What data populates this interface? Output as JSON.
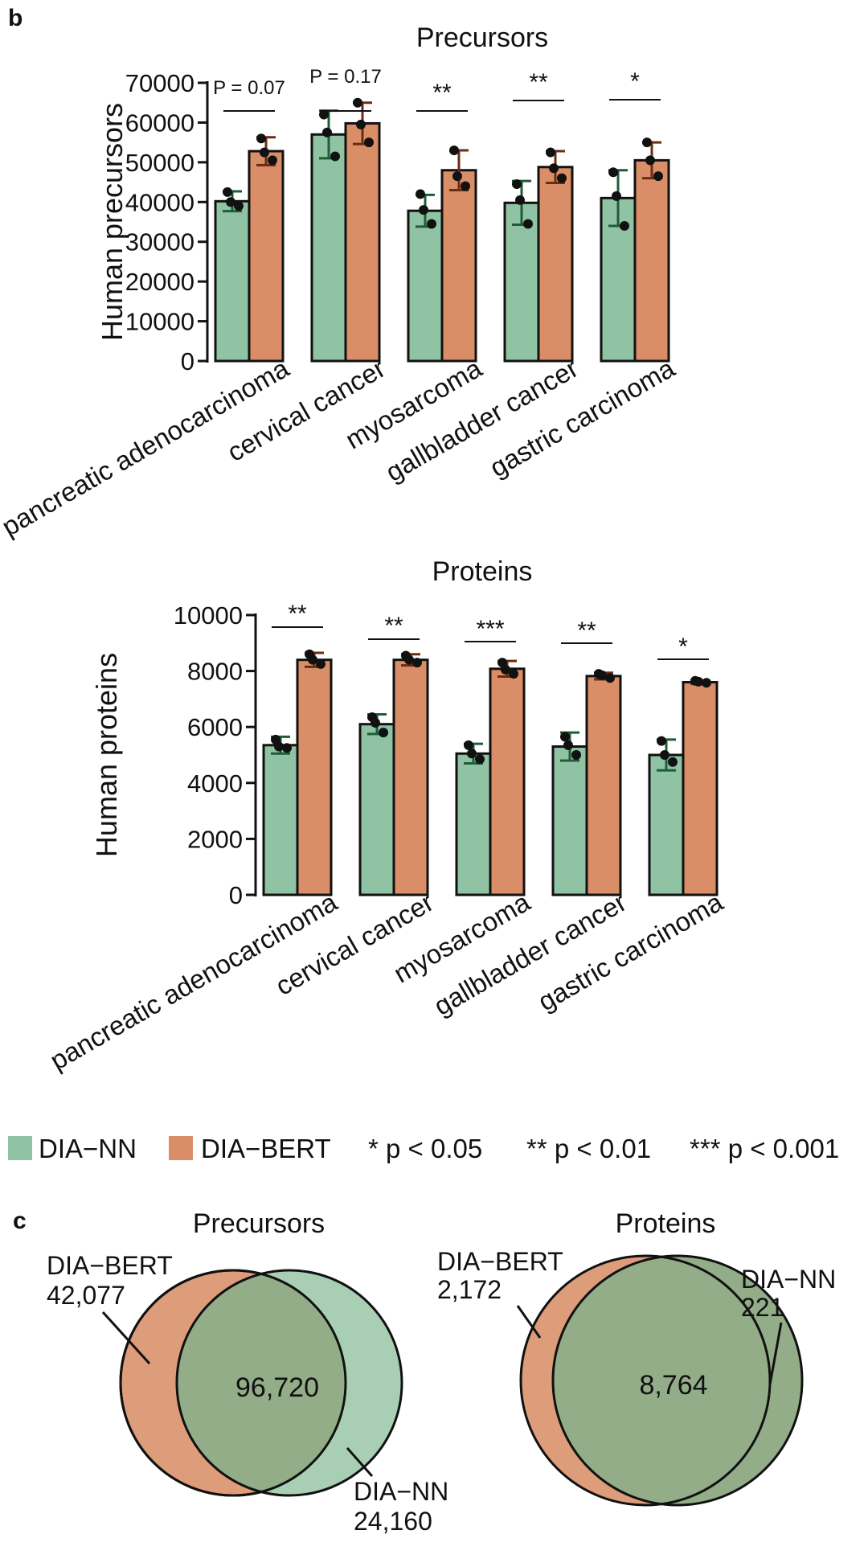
{
  "panel_labels": {
    "b": "b",
    "c": "c"
  },
  "colors": {
    "dia_nn": "#8fc3a4",
    "dia_nn_err": "#1f5c38",
    "dia_bert": "#d98e68",
    "dia_bert_err": "#6b2c14",
    "overlap": "#93ad88",
    "nn_only": "#a8cfb4",
    "bert_only": "#dd9c7a"
  },
  "chart_data": [
    {
      "type": "bar",
      "title": "Precursors",
      "ylabel": "Human precursors",
      "ylim": [
        0,
        70000
      ],
      "yticks": [
        "0",
        "10000",
        "20000",
        "30000",
        "40000",
        "50000",
        "60000",
        "70000"
      ],
      "categories": [
        "pancreatic adenocarcinoma",
        "cervical cancer",
        "myosarcoma",
        "gallbladder cancer",
        "gastric carcinoma"
      ],
      "series": [
        {
          "name": "DIA−NN",
          "values": [
            40200,
            57000,
            37800,
            39800,
            41000
          ],
          "err": [
            2500,
            6000,
            4000,
            5500,
            7000
          ],
          "points": [
            [
              42500,
              39000,
              40000
            ],
            [
              62000,
              51500,
              57500
            ],
            [
              42000,
              34500,
              38000
            ],
            [
              44500,
              34500,
              40500
            ],
            [
              47500,
              34000,
              41500
            ]
          ]
        },
        {
          "name": "DIA−BERT",
          "values": [
            52800,
            59800,
            48000,
            48800,
            50500
          ],
          "err": [
            3500,
            5200,
            5000,
            4000,
            4500
          ],
          "points": [
            [
              56000,
              50500,
              52500
            ],
            [
              65000,
              55000,
              59500
            ],
            [
              53000,
              44000,
              46500
            ],
            [
              52500,
              46000,
              48500
            ],
            [
              55000,
              46500,
              50500
            ]
          ]
        }
      ],
      "annotations": [
        "P = 0.07",
        "P = 0.17",
        "**",
        "**",
        "*"
      ]
    },
    {
      "type": "bar",
      "title": "Proteins",
      "ylabel": "Human proteins",
      "ylim": [
        0,
        10000
      ],
      "yticks": [
        "0",
        "2000",
        "4000",
        "6000",
        "8000",
        "10000"
      ],
      "categories": [
        "pancreatic adenocarcinoma",
        "cervical cancer",
        "myosarcoma",
        "gallbladder cancer",
        "gastric carcinoma"
      ],
      "series": [
        {
          "name": "DIA−NN",
          "values": [
            5350,
            6100,
            5050,
            5300,
            5000
          ],
          "err": [
            300,
            350,
            350,
            500,
            550
          ],
          "points": [
            [
              5550,
              5250,
              5300
            ],
            [
              6350,
              5800,
              6150
            ],
            [
              5350,
              4850,
              5050
            ],
            [
              5650,
              5000,
              5350
            ],
            [
              5500,
              4750,
              5000
            ]
          ]
        },
        {
          "name": "DIA−BERT",
          "values": [
            8400,
            8400,
            8080,
            7820,
            7600
          ],
          "err": [
            250,
            200,
            280,
            120,
            60
          ],
          "points": [
            [
              8600,
              8250,
              8400
            ],
            [
              8550,
              8300,
              8400
            ],
            [
              8300,
              7900,
              8050
            ],
            [
              7900,
              7750,
              7850
            ],
            [
              7650,
              7580,
              7620
            ]
          ]
        }
      ],
      "annotations": [
        "**",
        "**",
        "***",
        "**",
        "*"
      ]
    },
    {
      "type": "venn",
      "title": "Precursors",
      "sets": [
        {
          "name": "DIA−BERT",
          "only_label": "42,077"
        },
        {
          "name": "DIA−NN",
          "only_label": "24,160"
        }
      ],
      "overlap_label": "96,720"
    },
    {
      "type": "venn",
      "title": "Proteins",
      "sets": [
        {
          "name": "DIA−BERT",
          "only_label": "2,172"
        },
        {
          "name": "DIA−NN",
          "only_label": "221"
        }
      ],
      "overlap_label": "8,764"
    }
  ],
  "legend": {
    "items": [
      {
        "label": "DIA−NN"
      },
      {
        "label": "DIA−BERT"
      }
    ],
    "significance": [
      "* p < 0.05",
      "** p < 0.01",
      "*** p < 0.001"
    ]
  }
}
